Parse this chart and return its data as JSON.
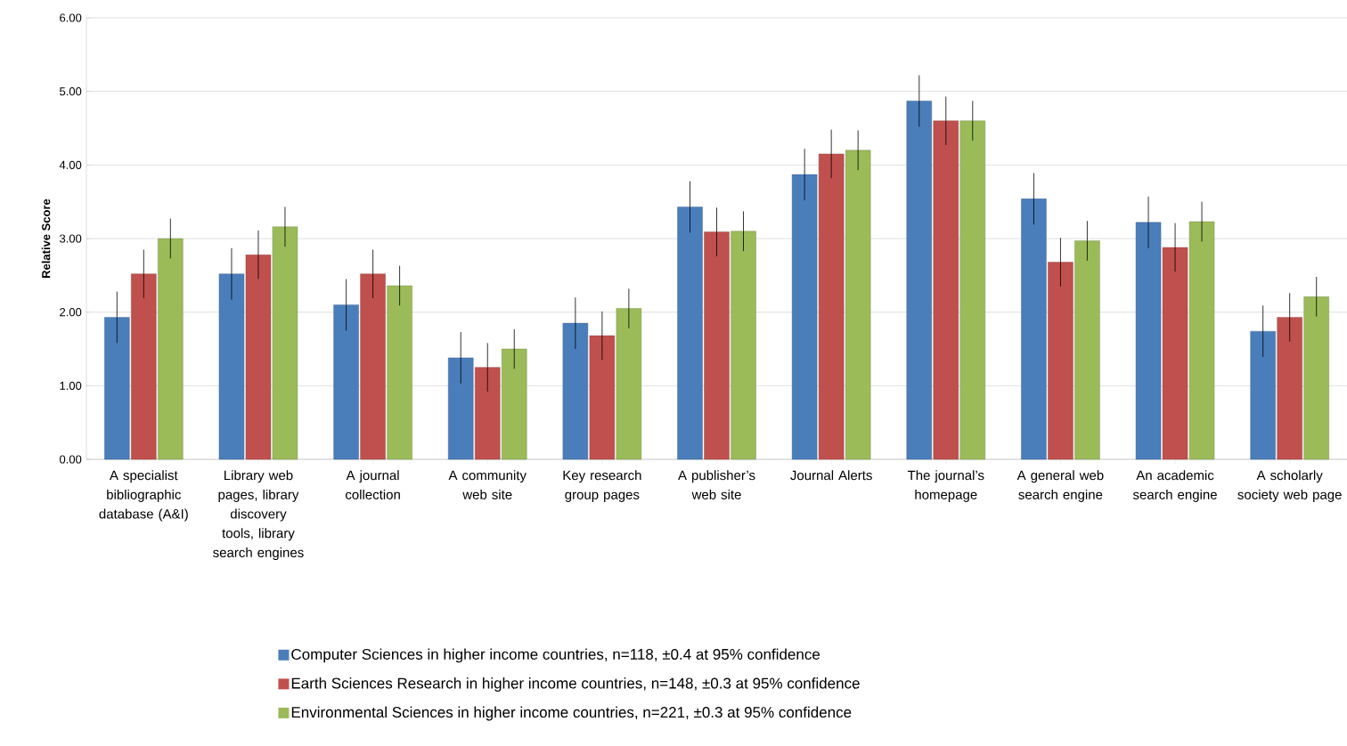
{
  "chart_data": {
    "type": "bar",
    "ylabel": "Relative Score",
    "categories": [
      "A specialist bibliographic database (A&I)",
      "Library web pages, library discovery tools, library search engines",
      "A journal collection",
      "A community web site",
      "Key research group pages",
      "A publisher’s web site",
      "Journal Alerts",
      "The journal’s homepage",
      "A general web search engine",
      "An academic search engine",
      "A scholarly society web page"
    ],
    "series": [
      {
        "name": "Computer Sciences in higher income countries, n=118, ±0.4 at 95% confidence",
        "color": "#4a7ebb",
        "values": [
          1.93,
          2.52,
          2.1,
          1.38,
          1.85,
          3.43,
          3.87,
          4.87,
          3.54,
          3.22,
          1.74
        ],
        "errors": [
          0.35,
          0.35,
          0.35,
          0.35,
          0.35,
          0.35,
          0.35,
          0.35,
          0.35,
          0.35,
          0.35
        ]
      },
      {
        "name": "Earth Sciences Research in higher income countries, n=148, ±0.3 at 95% confidence",
        "color": "#c0504d",
        "values": [
          2.52,
          2.78,
          2.52,
          1.25,
          1.68,
          3.09,
          4.15,
          4.6,
          2.68,
          2.88,
          1.93
        ],
        "errors": [
          0.33,
          0.33,
          0.33,
          0.33,
          0.33,
          0.33,
          0.33,
          0.33,
          0.33,
          0.33,
          0.33
        ]
      },
      {
        "name": "Environmental Sciences in higher income countries, n=221, ±0.3 at 95% confidence",
        "color": "#9bbb59",
        "values": [
          3.0,
          3.16,
          2.36,
          1.5,
          2.05,
          3.1,
          4.2,
          4.6,
          2.97,
          3.23,
          2.21
        ],
        "errors": [
          0.27,
          0.27,
          0.27,
          0.27,
          0.27,
          0.27,
          0.27,
          0.27,
          0.27,
          0.27,
          0.27
        ]
      }
    ],
    "ylim": [
      0,
      6
    ],
    "yticks": [
      {
        "value": 0,
        "label": "0.00"
      },
      {
        "value": 1,
        "label": "1.00"
      },
      {
        "value": 2,
        "label": "2.00"
      },
      {
        "value": 3,
        "label": "3.00"
      },
      {
        "value": 4,
        "label": "4.00"
      },
      {
        "value": 5,
        "label": "5.00"
      },
      {
        "value": 6,
        "label": "6.00"
      }
    ],
    "grid": "y",
    "legend": "bottom"
  }
}
